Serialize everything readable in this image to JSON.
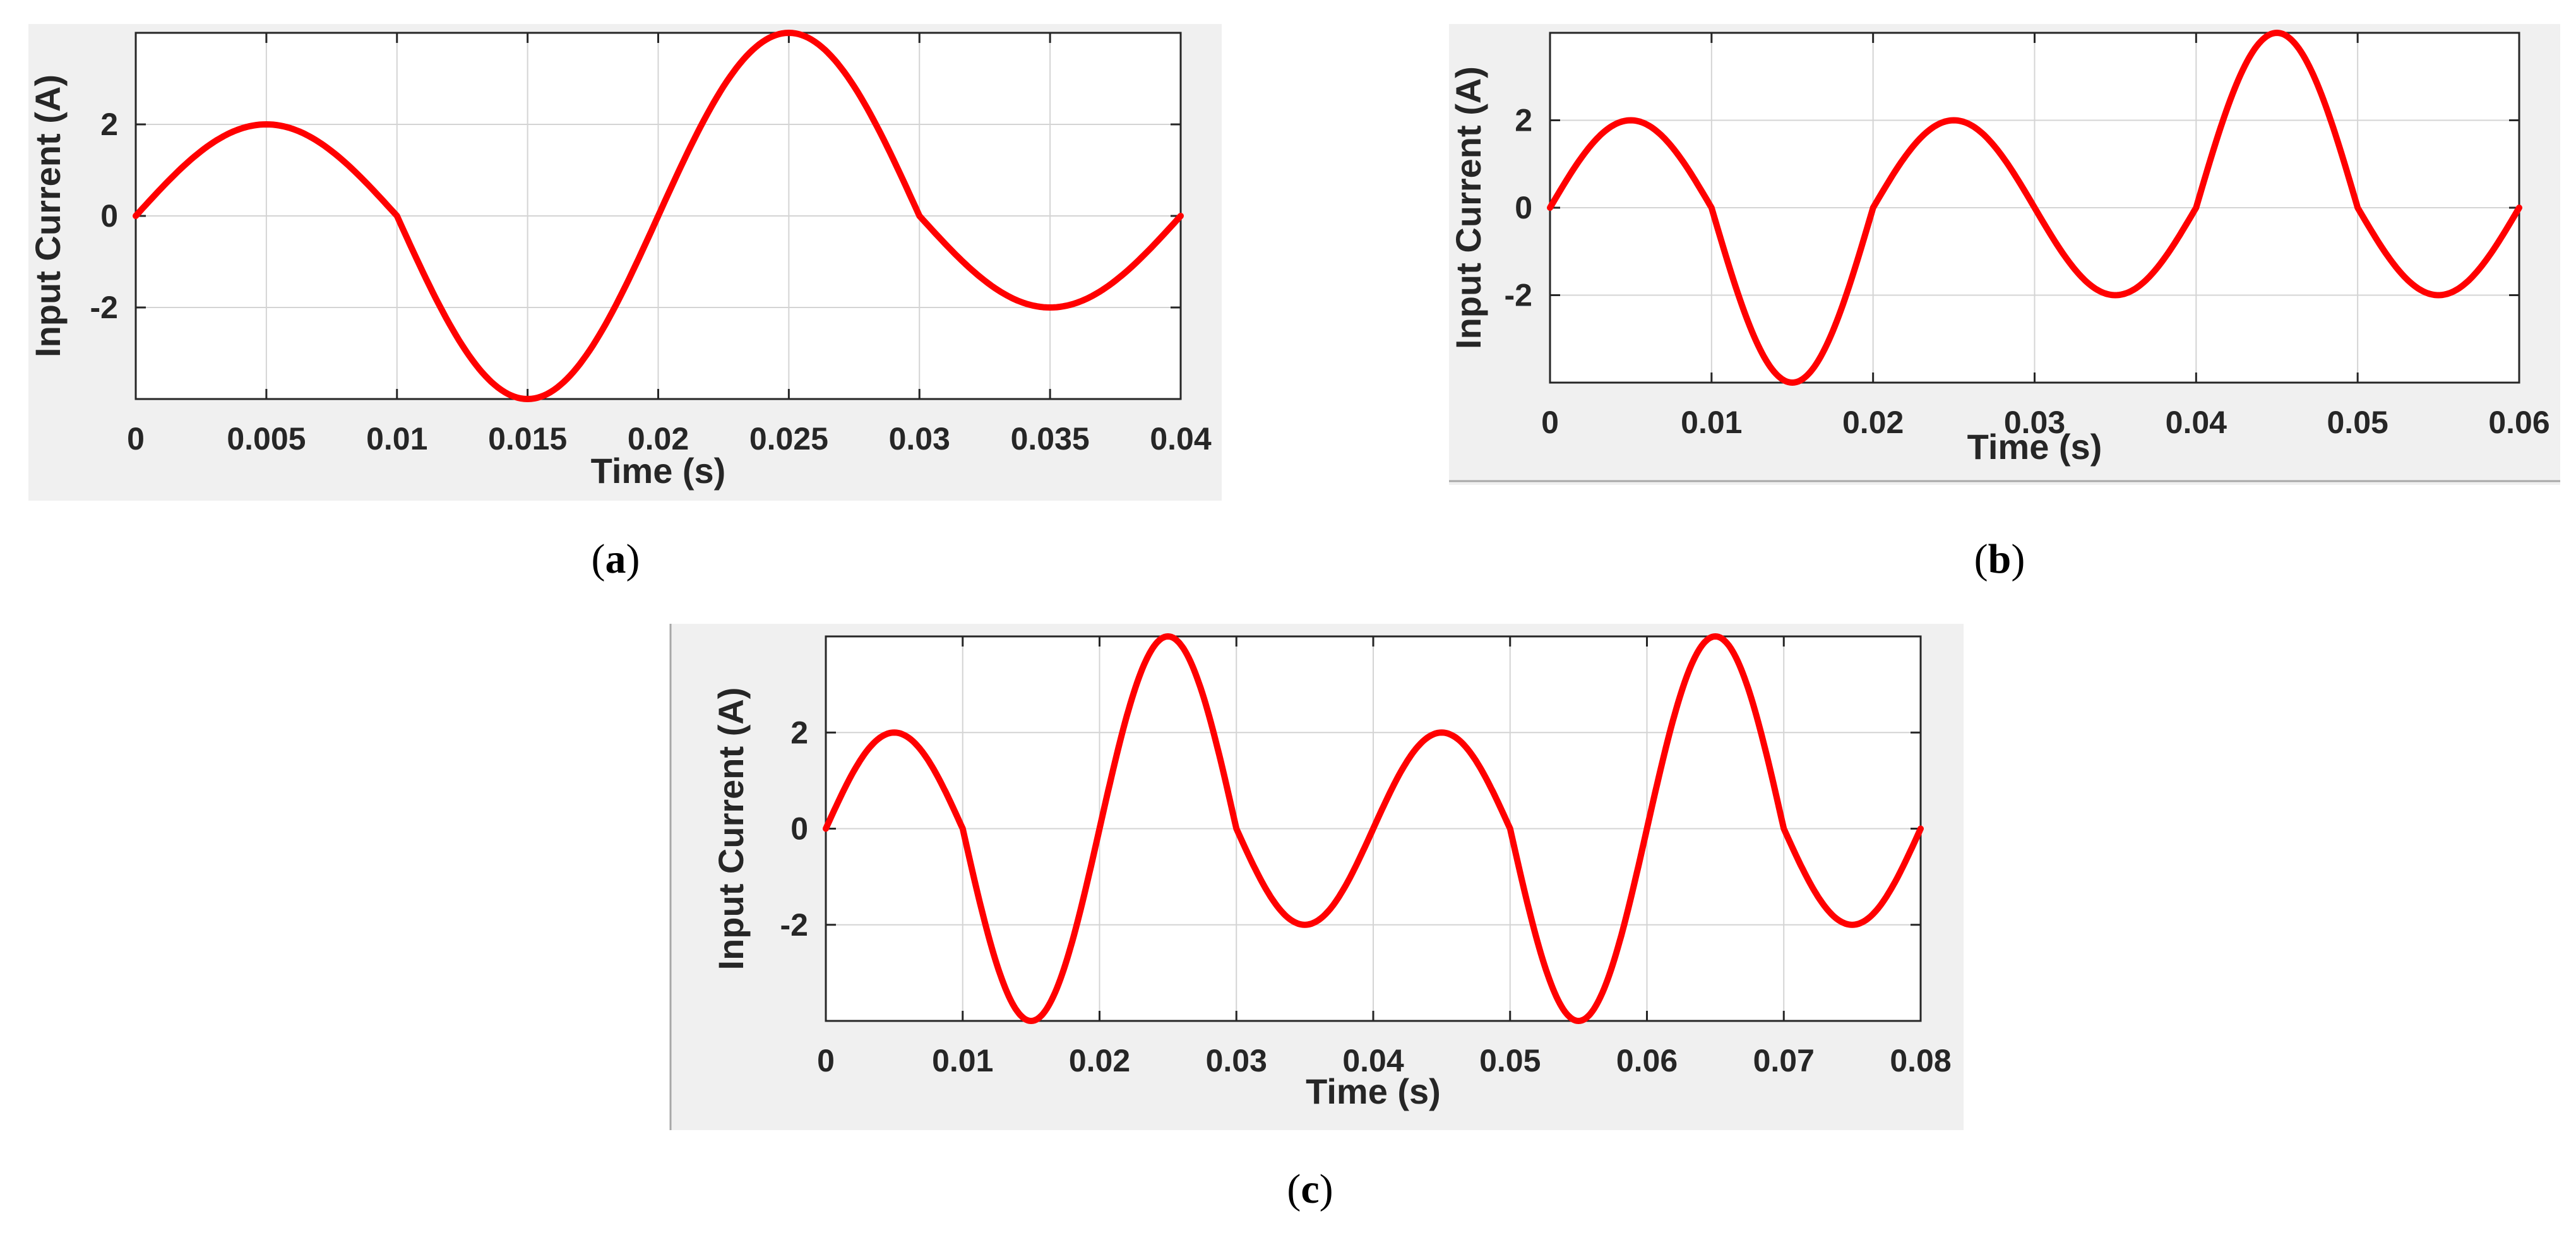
{
  "chart_data": [
    {
      "type": "line",
      "panel": "a",
      "caption_open": "(",
      "caption_letter": "a",
      "caption_close": ")",
      "xlabel": "Time (s)",
      "ylabel": "Input Current (A)",
      "xlim": [
        0,
        0.04
      ],
      "ylim": [
        -4,
        4
      ],
      "xticks": [
        0,
        0.005,
        0.01,
        0.015,
        0.02,
        0.025,
        0.03,
        0.035,
        0.04
      ],
      "xtick_labels": [
        "0",
        "0.005",
        "0.01",
        "0.015",
        "0.02",
        "0.025",
        "0.03",
        "0.035",
        "0.04"
      ],
      "yticks": [
        -2,
        0,
        2
      ],
      "ytick_labels": [
        "-2",
        "0",
        "2"
      ],
      "grid": true,
      "series": [
        {
          "name": "Input Current",
          "color": "#ff0000",
          "segments": [
            {
              "from": 0,
              "to": 0.01,
              "amplitude": 2
            },
            {
              "from": 0.01,
              "to": 0.02,
              "amplitude": -4
            },
            {
              "from": 0.02,
              "to": 0.03,
              "amplitude": 4
            },
            {
              "from": 0.03,
              "to": 0.04,
              "amplitude": -2
            }
          ]
        }
      ]
    },
    {
      "type": "line",
      "panel": "b",
      "caption_open": "(",
      "caption_letter": "b",
      "caption_close": ")",
      "xlabel": "Time (s)",
      "ylabel": "Input Current (A)",
      "xlim": [
        0,
        0.06
      ],
      "ylim": [
        -4,
        4
      ],
      "xticks": [
        0,
        0.01,
        0.02,
        0.03,
        0.04,
        0.05,
        0.06
      ],
      "xtick_labels": [
        "0",
        "0.01",
        "0.02",
        "0.03",
        "0.04",
        "0.05",
        "0.06"
      ],
      "yticks": [
        -2,
        0,
        2
      ],
      "ytick_labels": [
        "-2",
        "0",
        "2"
      ],
      "grid": true,
      "series": [
        {
          "name": "Input Current",
          "color": "#ff0000",
          "segments": [
            {
              "from": 0,
              "to": 0.01,
              "amplitude": 2
            },
            {
              "from": 0.01,
              "to": 0.02,
              "amplitude": -4
            },
            {
              "from": 0.02,
              "to": 0.03,
              "amplitude": 2
            },
            {
              "from": 0.03,
              "to": 0.04,
              "amplitude": -2
            },
            {
              "from": 0.04,
              "to": 0.05,
              "amplitude": 4
            },
            {
              "from": 0.05,
              "to": 0.06,
              "amplitude": -2
            }
          ]
        }
      ]
    },
    {
      "type": "line",
      "panel": "c",
      "caption_open": "(",
      "caption_letter": "c",
      "caption_close": ")",
      "xlabel": "Time (s)",
      "ylabel": "Input Current (A)",
      "xlim": [
        0,
        0.08
      ],
      "ylim": [
        -4,
        4
      ],
      "xticks": [
        0,
        0.01,
        0.02,
        0.03,
        0.04,
        0.05,
        0.06,
        0.07,
        0.08
      ],
      "xtick_labels": [
        "0",
        "0.01",
        "0.02",
        "0.03",
        "0.04",
        "0.05",
        "0.06",
        "0.07",
        "0.08"
      ],
      "yticks": [
        -2,
        0,
        2
      ],
      "ytick_labels": [
        "-2",
        "0",
        "2"
      ],
      "grid": true,
      "series": [
        {
          "name": "Input Current",
          "color": "#ff0000",
          "segments": [
            {
              "from": 0,
              "to": 0.01,
              "amplitude": 2
            },
            {
              "from": 0.01,
              "to": 0.02,
              "amplitude": -4
            },
            {
              "from": 0.02,
              "to": 0.03,
              "amplitude": 4
            },
            {
              "from": 0.03,
              "to": 0.04,
              "amplitude": -2
            },
            {
              "from": 0.04,
              "to": 0.05,
              "amplitude": 2
            },
            {
              "from": 0.05,
              "to": 0.06,
              "amplitude": -4
            },
            {
              "from": 0.06,
              "to": 0.07,
              "amplitude": 4
            },
            {
              "from": 0.07,
              "to": 0.08,
              "amplitude": -2
            }
          ]
        }
      ]
    }
  ]
}
